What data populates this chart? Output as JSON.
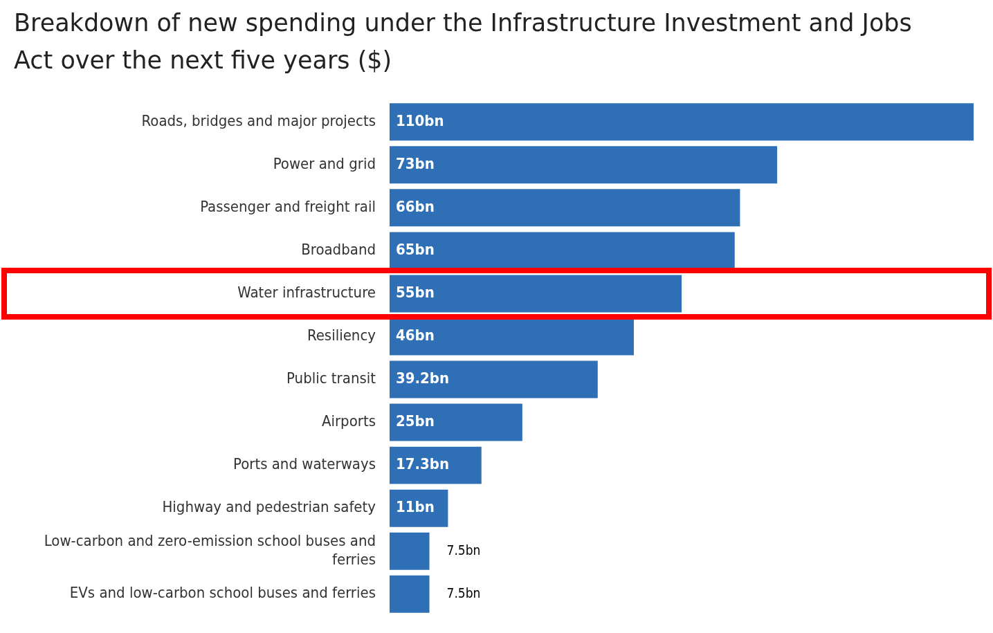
{
  "chart_data": {
    "type": "bar",
    "orientation": "horizontal",
    "title": "Breakdown of new spending under the Infrastructure Investment and Jobs Act over the next five years ($)",
    "categories": [
      "Roads, bridges and major projects",
      "Power and grid",
      "Passenger and freight rail",
      "Broadband",
      "Water infrastructure",
      "Resiliency",
      "Public transit",
      "Airports",
      "Ports and waterways",
      "Highway and pedestrian safety",
      "Low-carbon and zero-emission school buses and ferries",
      "EVs and low-carbon school buses and ferries"
    ],
    "values": [
      110,
      73,
      66,
      65,
      55,
      46,
      39.2,
      25,
      17.3,
      11,
      7.5,
      7.5
    ],
    "value_labels": [
      "110bn",
      "73bn",
      "66bn",
      "65bn",
      "55bn",
      "46bn",
      "39.2bn",
      "25bn",
      "17.3bn",
      "11bn",
      "7.5bn",
      "7.5bn"
    ],
    "color": "#2e6fb5",
    "xlim": [
      0,
      110
    ],
    "tick_labels": "y",
    "legend": false
  }
}
